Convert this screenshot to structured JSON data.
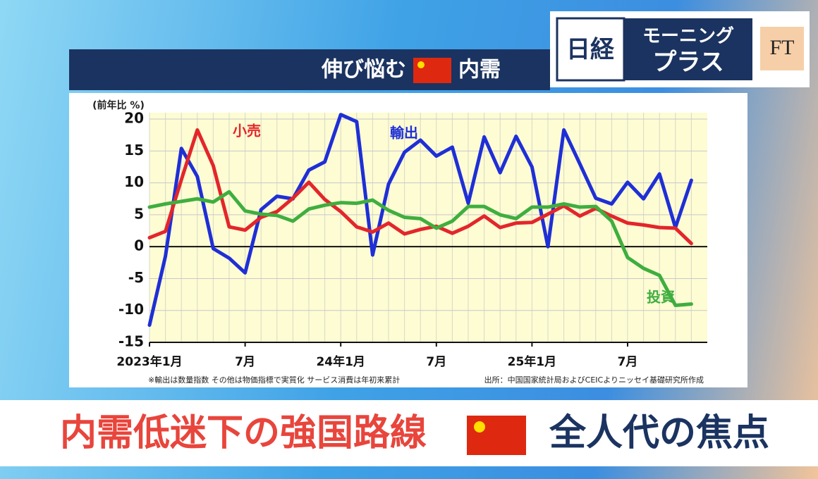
{
  "header": {
    "logo_left": "日経",
    "logo_right_top": "モーニング",
    "logo_right_bottom": "プラス",
    "ft": "FT"
  },
  "chart_data": {
    "type": "line",
    "title_parts": [
      "伸び悩む",
      "内需"
    ],
    "ylabel": "(前年比 %)",
    "categories": [
      "2023年1月",
      null,
      null,
      null,
      null,
      null,
      "7月",
      null,
      null,
      null,
      null,
      null,
      "24年1月",
      null,
      null,
      null,
      null,
      null,
      "7月",
      null,
      null,
      null,
      null,
      null,
      "25年1月",
      null,
      null,
      null,
      null,
      null,
      "7月",
      null,
      null,
      null,
      null
    ],
    "series": [
      {
        "name": "輸出",
        "color": "#1f2fd6",
        "values": [
          -12.3,
          -1.5,
          15.4,
          11,
          -0.3,
          -1.8,
          -4.1,
          5.8,
          7.9,
          7.5,
          12,
          13.3,
          20.7,
          19.6,
          -1.3,
          9.8,
          14.8,
          16.7,
          14.2,
          15.6,
          6.8,
          17.2,
          11.6,
          17.3,
          12.5,
          0,
          18.3,
          13,
          7.6,
          6.7,
          10.1,
          7.5,
          11.4,
          3,
          10.4
        ]
      },
      {
        "name": "小売",
        "color": "#e3262b",
        "values": [
          1.4,
          2.4,
          10.5,
          18.3,
          12.7,
          3.1,
          2.6,
          4.6,
          5.5,
          7.6,
          10.1,
          7.4,
          5.5,
          3.1,
          2.3,
          3.7,
          2,
          2.7,
          3.2,
          2.1,
          3.2,
          4.8,
          3,
          3.7,
          3.8,
          5.1,
          6.4,
          4.8,
          6,
          4.8,
          3.7,
          3.4,
          3,
          2.9,
          0.5
        ]
      },
      {
        "name": "投資",
        "color": "#3fae3f",
        "values": [
          6.2,
          6.7,
          7.1,
          7.5,
          7,
          8.6,
          5.6,
          5.1,
          4.9,
          4,
          5.9,
          6.5,
          6.9,
          6.8,
          7.3,
          5.7,
          4.6,
          4.4,
          2.9,
          4,
          6.3,
          6.3,
          5,
          4.4,
          6.2,
          6.2,
          6.7,
          6.2,
          6.3,
          4,
          -1.7,
          -3.4,
          -4.5,
          -9.2,
          -9
        ]
      }
    ],
    "ylim": [
      -15,
      21
    ],
    "yticks": [
      -15,
      -10,
      -5,
      0,
      5,
      10,
      15,
      20
    ],
    "grid": true,
    "note": "※輸出は数量指数 その他は物価指標で実質化 サービス消費は年初来累計",
    "source": "出所：中国国家統計局およびCEICよりニッセイ基礎研究所作成"
  },
  "caption": {
    "parts": [
      "内需低迷下の強国路線",
      "全人代の焦点"
    ]
  }
}
